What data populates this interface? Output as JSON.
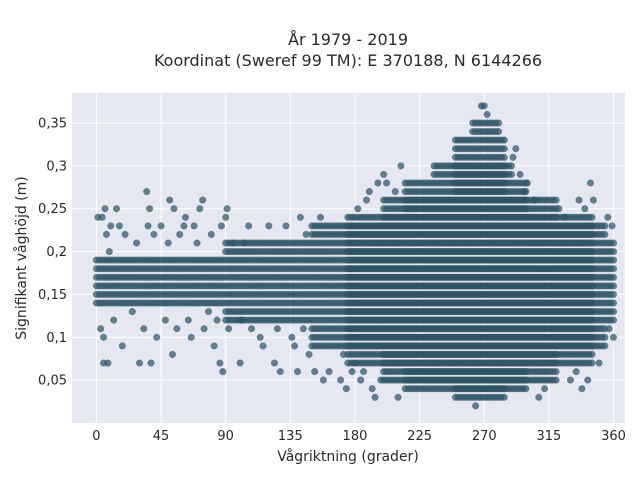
{
  "chart_data": {
    "type": "scatter",
    "title": "År 1979 - 2019",
    "subtitle": "Koordinat (Sweref 99 TM): E 370188, N 6144266",
    "xlabel": "Vågriktning (grader)",
    "ylabel": "Signifikant våghöjd (m)",
    "xlim": [
      -17,
      368
    ],
    "ylim": [
      0.0,
      0.385
    ],
    "xticks": [
      0,
      45,
      90,
      135,
      180,
      225,
      270,
      315,
      360
    ],
    "xtick_labels": [
      "0",
      "45",
      "90",
      "135",
      "180",
      "225",
      "270",
      "315",
      "360"
    ],
    "yticks": [
      0.05,
      0.1,
      0.15,
      0.2,
      0.25,
      0.3,
      0.35
    ],
    "ytick_labels": [
      "0,05",
      "0,1",
      "0,15",
      "0,2",
      "0,25",
      "0,3",
      "0,35"
    ],
    "grid": true,
    "background": "#e5e8f0",
    "point_color": "#2f5468",
    "height_step_m": 0.01,
    "direction_step_deg": 2,
    "dense_bands_m": [
      {
        "from_deg": 0,
        "to_deg": 360,
        "min": 0.14,
        "max": 0.19
      },
      {
        "from_deg": 90,
        "to_deg": 360,
        "min": 0.12,
        "max": 0.21
      },
      {
        "from_deg": 150,
        "to_deg": 355,
        "min": 0.09,
        "max": 0.23
      },
      {
        "from_deg": 175,
        "to_deg": 345,
        "min": 0.07,
        "max": 0.24
      },
      {
        "from_deg": 200,
        "to_deg": 320,
        "min": 0.05,
        "max": 0.26
      },
      {
        "from_deg": 215,
        "to_deg": 300,
        "min": 0.04,
        "max": 0.28
      },
      {
        "from_deg": 235,
        "to_deg": 290,
        "min": 0.04,
        "max": 0.3
      },
      {
        "from_deg": 250,
        "to_deg": 285,
        "min": 0.03,
        "max": 0.33
      },
      {
        "from_deg": 262,
        "to_deg": 280,
        "min": 0.03,
        "max": 0.35
      }
    ],
    "sparse_points": [
      [
        1,
        0.24
      ],
      [
        3,
        0.11
      ],
      [
        4,
        0.24
      ],
      [
        5,
        0.07
      ],
      [
        5,
        0.1
      ],
      [
        6,
        0.25
      ],
      [
        7,
        0.22
      ],
      [
        8,
        0.07
      ],
      [
        9,
        0.2
      ],
      [
        10,
        0.23
      ],
      [
        12,
        0.12
      ],
      [
        14,
        0.25
      ],
      [
        16,
        0.23
      ],
      [
        18,
        0.09
      ],
      [
        20,
        0.22
      ],
      [
        25,
        0.13
      ],
      [
        28,
        0.21
      ],
      [
        30,
        0.07
      ],
      [
        33,
        0.11
      ],
      [
        36,
        0.23
      ],
      [
        37,
        0.25
      ],
      [
        40,
        0.22
      ],
      [
        35,
        0.27
      ],
      [
        38,
        0.07
      ],
      [
        42,
        0.1
      ],
      [
        45,
        0.23
      ],
      [
        48,
        0.12
      ],
      [
        50,
        0.21
      ],
      [
        51,
        0.26
      ],
      [
        53,
        0.08
      ],
      [
        54,
        0.25
      ],
      [
        56,
        0.11
      ],
      [
        58,
        0.22
      ],
      [
        61,
        0.23
      ],
      [
        62,
        0.24
      ],
      [
        64,
        0.12
      ],
      [
        66,
        0.1
      ],
      [
        68,
        0.23
      ],
      [
        70,
        0.21
      ],
      [
        72,
        0.25
      ],
      [
        74,
        0.26
      ],
      [
        75,
        0.11
      ],
      [
        78,
        0.13
      ],
      [
        80,
        0.22
      ],
      [
        82,
        0.09
      ],
      [
        84,
        0.12
      ],
      [
        86,
        0.07
      ],
      [
        87,
        0.23
      ],
      [
        88,
        0.06
      ],
      [
        90,
        0.24
      ],
      [
        91,
        0.25
      ],
      [
        92,
        0.11
      ],
      [
        95,
        0.21
      ],
      [
        98,
        0.12
      ],
      [
        100,
        0.07
      ],
      [
        101,
        0.12
      ],
      [
        103,
        0.21
      ],
      [
        106,
        0.23
      ],
      [
        108,
        0.11
      ],
      [
        110,
        0.12
      ],
      [
        112,
        0.2
      ],
      [
        114,
        0.1
      ],
      [
        116,
        0.09
      ],
      [
        118,
        0.21
      ],
      [
        120,
        0.23
      ],
      [
        122,
        0.12
      ],
      [
        124,
        0.07
      ],
      [
        126,
        0.11
      ],
      [
        128,
        0.06
      ],
      [
        130,
        0.21
      ],
      [
        132,
        0.23
      ],
      [
        134,
        0.12
      ],
      [
        136,
        0.1
      ],
      [
        138,
        0.09
      ],
      [
        140,
        0.06
      ],
      [
        142,
        0.24
      ],
      [
        144,
        0.11
      ],
      [
        146,
        0.22
      ],
      [
        148,
        0.08
      ],
      [
        150,
        0.12
      ],
      [
        152,
        0.06
      ],
      [
        154,
        0.1
      ],
      [
        156,
        0.24
      ],
      [
        158,
        0.05
      ],
      [
        160,
        0.22
      ],
      [
        162,
        0.06
      ],
      [
        164,
        0.09
      ],
      [
        166,
        0.11
      ],
      [
        168,
        0.23
      ],
      [
        170,
        0.05
      ],
      [
        172,
        0.08
      ],
      [
        174,
        0.04
      ],
      [
        176,
        0.22
      ],
      [
        178,
        0.06
      ],
      [
        180,
        0.07
      ],
      [
        182,
        0.25
      ],
      [
        184,
        0.05
      ],
      [
        186,
        0.06
      ],
      [
        188,
        0.26
      ],
      [
        190,
        0.27
      ],
      [
        192,
        0.04
      ],
      [
        194,
        0.03
      ],
      [
        196,
        0.28
      ],
      [
        198,
        0.05
      ],
      [
        200,
        0.29
      ],
      [
        202,
        0.28
      ],
      [
        204,
        0.26
      ],
      [
        208,
        0.27
      ],
      [
        210,
        0.03
      ],
      [
        212,
        0.3
      ],
      [
        264,
        0.02
      ],
      [
        268,
        0.37
      ],
      [
        270,
        0.37
      ],
      [
        272,
        0.36
      ],
      [
        290,
        0.31
      ],
      [
        292,
        0.32
      ],
      [
        295,
        0.29
      ],
      [
        298,
        0.27
      ],
      [
        300,
        0.28
      ],
      [
        305,
        0.26
      ],
      [
        308,
        0.03
      ],
      [
        312,
        0.04
      ],
      [
        318,
        0.05
      ],
      [
        322,
        0.25
      ],
      [
        326,
        0.24
      ],
      [
        330,
        0.05
      ],
      [
        334,
        0.06
      ],
      [
        336,
        0.26
      ],
      [
        338,
        0.04
      ],
      [
        340,
        0.25
      ],
      [
        342,
        0.05
      ],
      [
        344,
        0.28
      ],
      [
        346,
        0.26
      ],
      [
        348,
        0.23
      ],
      [
        350,
        0.07
      ],
      [
        352,
        0.09
      ],
      [
        354,
        0.22
      ],
      [
        356,
        0.24
      ],
      [
        357,
        0.11
      ],
      [
        358,
        0.21
      ],
      [
        359,
        0.23
      ],
      [
        360,
        0.1
      ],
      [
        360,
        0.12
      ]
    ]
  }
}
